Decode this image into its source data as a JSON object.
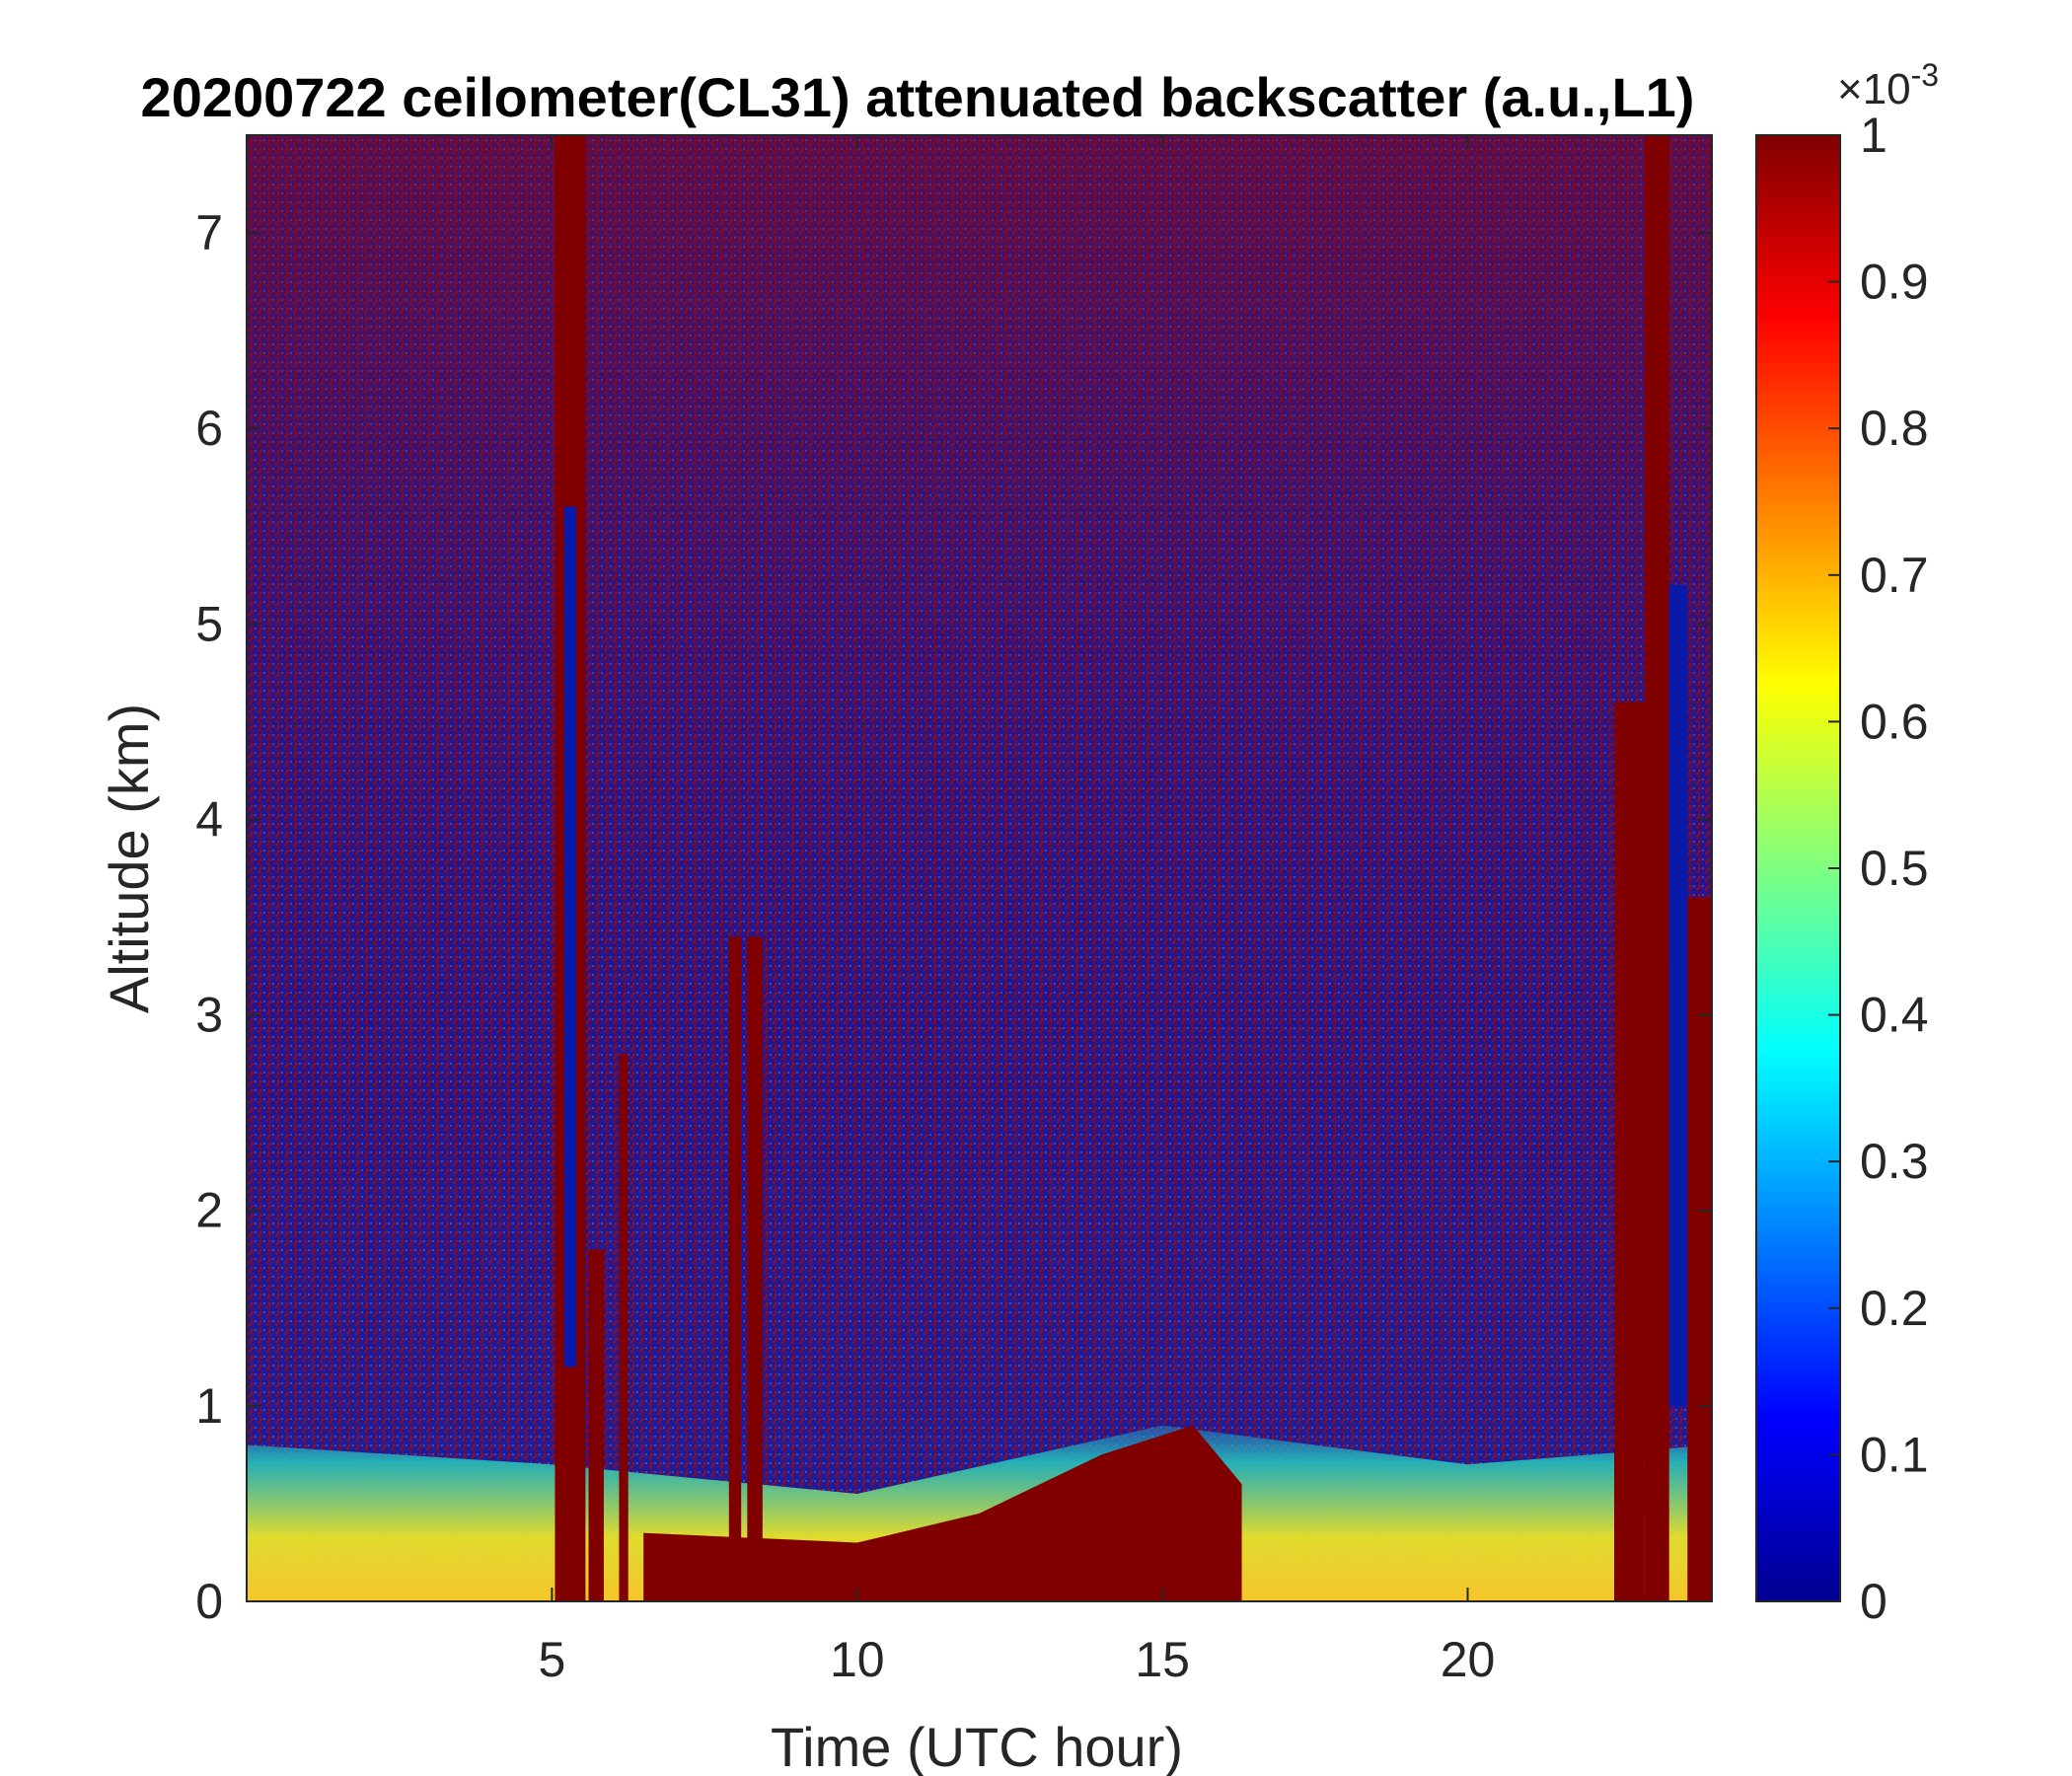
{
  "chart_data": {
    "type": "heatmap",
    "title": "20200722 ceilometer(CL31) attenuated backscatter (a.u.,L1)",
    "xlabel": "Time (UTC hour)",
    "ylabel": "Altitude (km)",
    "xlim": [
      0,
      24
    ],
    "ylim": [
      0,
      7.5
    ],
    "x_ticks": [
      5,
      10,
      15,
      20
    ],
    "y_ticks": [
      0,
      1,
      2,
      3,
      4,
      5,
      6,
      7
    ],
    "colorbar": {
      "colormap": "jet",
      "clim": [
        0,
        1
      ],
      "ticks": [
        0,
        0.1,
        0.2,
        0.3,
        0.4,
        0.5,
        0.6,
        0.7,
        0.8,
        0.9,
        1
      ],
      "exponent_base": "×10",
      "exponent_power": "-3"
    },
    "features": {
      "aerosol_layer_top_km": [
        {
          "x": 0,
          "y": 0.8
        },
        {
          "x": 5,
          "y": 0.7
        },
        {
          "x": 10,
          "y": 0.55
        },
        {
          "x": 15,
          "y": 0.9
        },
        {
          "x": 20,
          "y": 0.7
        },
        {
          "x": 24,
          "y": 0.8
        }
      ],
      "dense_layer_top_km": [
        {
          "x": 6.5,
          "y": 0.35
        },
        {
          "x": 10,
          "y": 0.3
        },
        {
          "x": 12,
          "y": 0.45
        },
        {
          "x": 14,
          "y": 0.75
        },
        {
          "x": 15.5,
          "y": 0.9
        },
        {
          "x": 16.3,
          "y": 0.6
        }
      ],
      "saturated_columns_hours": [
        {
          "start": 5.05,
          "end": 5.55,
          "top_km": 7.5
        },
        {
          "start": 5.6,
          "end": 5.85,
          "top_km": 1.8
        },
        {
          "start": 6.1,
          "end": 6.25,
          "top_km": 2.8
        },
        {
          "start": 7.9,
          "end": 8.1,
          "top_km": 3.4
        },
        {
          "start": 8.2,
          "end": 8.45,
          "top_km": 3.4
        },
        {
          "start": 22.4,
          "end": 22.9,
          "top_km": 4.6
        },
        {
          "start": 22.9,
          "end": 23.3,
          "top_km": 7.5
        },
        {
          "start": 23.6,
          "end": 24.0,
          "top_km": 3.6
        }
      ],
      "clear_columns_hours": [
        {
          "start": 5.2,
          "end": 5.4,
          "from_km": 1.2,
          "to_km": 5.6
        },
        {
          "start": 23.3,
          "end": 23.6,
          "from_km": 1.0,
          "to_km": 5.2
        }
      ]
    }
  }
}
